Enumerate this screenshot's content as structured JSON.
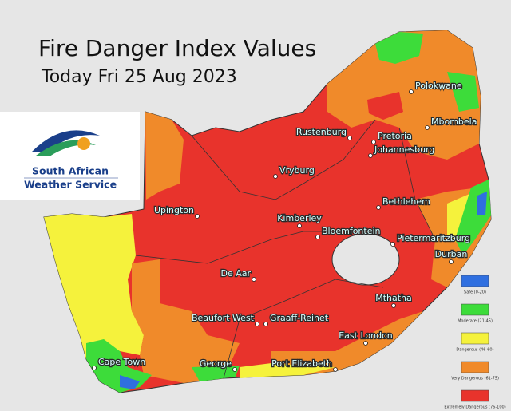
{
  "title": "Fire Danger Index Values",
  "subtitle": "Today Fri 25 Aug 2023",
  "logo": {
    "line1": "South African",
    "line2": "Weather Service"
  },
  "cities": [
    "Polokwane",
    "Mbombela",
    "Rustenburg",
    "Pretoria",
    "Johannesburg",
    "Vryburg",
    "Bethlehem",
    "Upington",
    "Kimberley",
    "Bloemfontein",
    "Pietermaritzburg",
    "Durban",
    "De Aar",
    "Mthatha",
    "Beaufort West",
    "Graaff-Reinet",
    "East London",
    "Cape Town",
    "George",
    "Port Elizabeth"
  ],
  "legend": [
    {
      "label": "Safe (0-20)",
      "color": "#2f6fe0"
    },
    {
      "label": "Moderate (21-45)",
      "color": "#3ddc3a"
    },
    {
      "label": "Dangerous (46-60)",
      "color": "#f5f23c"
    },
    {
      "label": "Very Dangerous (61-75)",
      "color": "#f08a2a"
    },
    {
      "label": "Extremely Dangerous (76-100)",
      "color": "#e8332c"
    }
  ]
}
